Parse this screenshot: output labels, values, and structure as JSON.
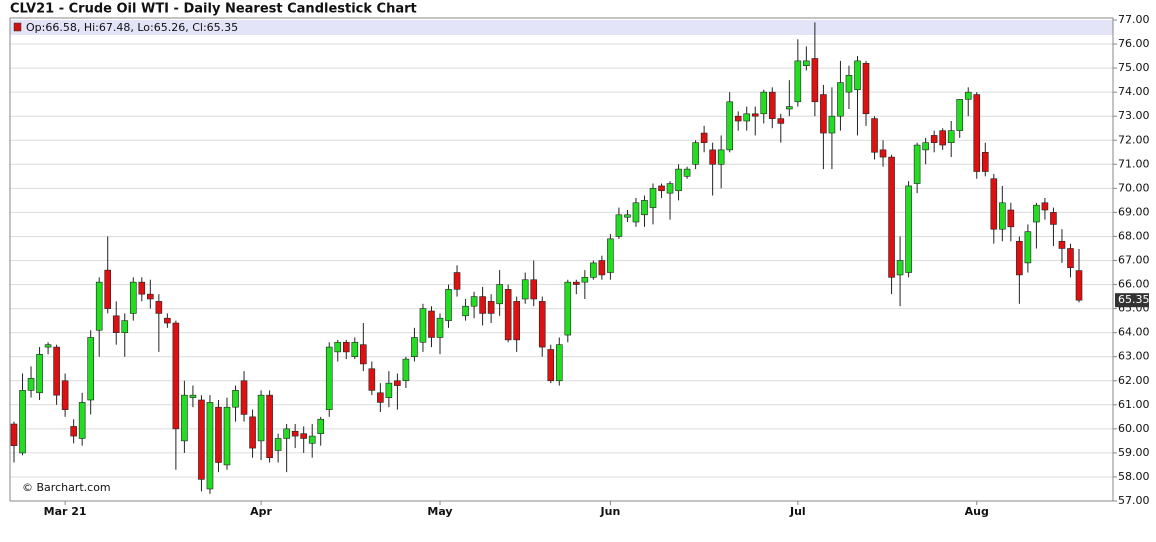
{
  "chart_data": {
    "type": "candlestick",
    "title": "CLV21 - Crude Oil WTI - Daily Nearest Candlestick Chart",
    "legend_text": "Op:66.58, Hi:67.48, Lo:65.26, Cl:65.35",
    "copyright": "© Barchart.com",
    "categories": [
      null,
      null,
      null,
      null,
      null,
      null,
      "Mar 21",
      null,
      null,
      null,
      null,
      null,
      null,
      null,
      null,
      null,
      null,
      null,
      null,
      null,
      null,
      null,
      null,
      null,
      null,
      null,
      null,
      null,
      null,
      "Apr",
      null,
      null,
      null,
      null,
      null,
      null,
      null,
      null,
      null,
      null,
      null,
      null,
      null,
      null,
      null,
      null,
      null,
      null,
      null,
      null,
      "May",
      null,
      null,
      null,
      null,
      null,
      null,
      null,
      null,
      null,
      null,
      null,
      null,
      null,
      null,
      null,
      null,
      null,
      null,
      null,
      "Jun",
      null,
      null,
      null,
      null,
      null,
      null,
      null,
      null,
      null,
      null,
      null,
      null,
      null,
      null,
      null,
      null,
      null,
      null,
      null,
      null,
      null,
      "Jul",
      null,
      null,
      null,
      null,
      null,
      null,
      null,
      null,
      null,
      null,
      null,
      null,
      null,
      null,
      null,
      null,
      null,
      null,
      null,
      null,
      "Aug",
      null,
      null,
      null,
      null,
      null,
      null,
      null,
      null,
      null,
      null,
      null,
      null
    ],
    "open": [
      60.2,
      59.0,
      61.6,
      61.5,
      63.4,
      63.4,
      62.0,
      60.1,
      59.6,
      61.2,
      64.1,
      66.6,
      64.7,
      64.0,
      64.8,
      66.1,
      65.6,
      65.3,
      64.6,
      64.4,
      59.5,
      61.3,
      61.2,
      57.5,
      60.9,
      58.5,
      60.9,
      62.0,
      60.5,
      59.5,
      61.4,
      59.1,
      59.6,
      59.9,
      59.8,
      59.4,
      59.8,
      60.8,
      63.2,
      63.6,
      63.0,
      63.5,
      62.5,
      61.5,
      61.3,
      62.0,
      62.0,
      63.0,
      63.6,
      64.9,
      63.8,
      64.5,
      66.5,
      64.7,
      65.1,
      65.5,
      65.3,
      65.2,
      65.8,
      65.3,
      65.4,
      66.2,
      65.3,
      63.3,
      62.0,
      63.9,
      66.1,
      66.1,
      66.3,
      67.0,
      66.5,
      68.0,
      68.8,
      68.6,
      68.9,
      69.2,
      70.1,
      69.8,
      69.9,
      70.5,
      71.0,
      72.3,
      71.6,
      71.0,
      71.6,
      73.0,
      72.8,
      73.1,
      73.1,
      74.0,
      72.9,
      73.3,
      73.6,
      75.1,
      75.4,
      73.9,
      72.3,
      73.0,
      74.0,
      74.1,
      75.2,
      72.9,
      71.6,
      71.3,
      66.4,
      66.5,
      70.2,
      71.6,
      72.2,
      72.4,
      71.9,
      72.4,
      73.7,
      73.9,
      71.5,
      70.4,
      68.3,
      69.1,
      67.8,
      66.9,
      68.6,
      69.4,
      69.0,
      67.8,
      67.5,
      66.58
    ],
    "high": [
      60.3,
      62.3,
      62.6,
      63.4,
      63.6,
      63.5,
      62.3,
      60.4,
      61.5,
      64.1,
      66.3,
      68.0,
      65.3,
      64.8,
      66.3,
      66.3,
      66.2,
      65.6,
      64.8,
      64.5,
      62.0,
      61.8,
      61.4,
      61.4,
      61.2,
      61.3,
      61.8,
      62.4,
      60.8,
      61.6,
      61.6,
      59.8,
      60.2,
      60.2,
      60.1,
      60.2,
      60.5,
      63.6,
      63.7,
      63.7,
      63.8,
      64.4,
      62.8,
      61.9,
      62.4,
      62.3,
      63.0,
      64.2,
      65.2,
      65.1,
      64.8,
      66.0,
      66.8,
      65.4,
      65.7,
      65.9,
      65.6,
      66.6,
      66.0,
      65.5,
      66.5,
      67.0,
      65.5,
      63.5,
      63.8,
      66.2,
      66.2,
      66.6,
      67.0,
      67.2,
      68.1,
      69.2,
      69.1,
      69.6,
      69.7,
      70.2,
      70.2,
      70.3,
      71.0,
      70.9,
      72.0,
      72.6,
      71.9,
      72.2,
      74.0,
      73.2,
      73.4,
      73.4,
      74.1,
      74.2,
      73.1,
      74.5,
      76.2,
      75.9,
      76.9,
      74.3,
      74.2,
      75.3,
      75.1,
      75.5,
      75.3,
      73.0,
      72.0,
      71.4,
      68.0,
      70.3,
      71.9,
      72.1,
      72.4,
      72.5,
      72.8,
      73.7,
      74.2,
      74.0,
      71.9,
      70.6,
      70.1,
      69.4,
      68.0,
      68.5,
      69.4,
      69.6,
      69.2,
      68.3,
      67.7,
      67.48
    ],
    "low": [
      58.6,
      58.9,
      61.3,
      61.2,
      63.1,
      61.0,
      60.5,
      59.4,
      59.3,
      60.6,
      63.0,
      64.8,
      63.5,
      63.0,
      64.5,
      65.3,
      65.0,
      63.2,
      64.2,
      58.3,
      59.0,
      60.9,
      57.4,
      57.3,
      58.2,
      58.3,
      60.3,
      60.3,
      58.8,
      58.7,
      58.6,
      58.6,
      58.2,
      59.2,
      59.0,
      58.8,
      59.3,
      60.5,
      62.8,
      62.9,
      62.9,
      62.4,
      61.4,
      60.7,
      60.9,
      60.8,
      61.7,
      62.8,
      63.2,
      63.4,
      63.1,
      64.2,
      65.5,
      64.5,
      64.6,
      64.3,
      64.4,
      64.7,
      63.6,
      63.2,
      65.2,
      65.1,
      63.0,
      61.9,
      61.8,
      63.6,
      65.6,
      65.4,
      66.2,
      66.2,
      66.2,
      67.9,
      68.6,
      68.4,
      68.4,
      68.5,
      69.6,
      68.7,
      69.5,
      70.4,
      70.8,
      71.5,
      69.7,
      70.0,
      71.5,
      72.4,
      72.4,
      72.2,
      72.7,
      72.5,
      71.9,
      73.0,
      73.4,
      74.9,
      73.0,
      70.8,
      70.8,
      72.4,
      73.3,
      72.2,
      72.6,
      71.2,
      70.9,
      65.6,
      65.1,
      66.3,
      69.8,
      71.0,
      71.5,
      71.6,
      71.3,
      72.1,
      73.0,
      70.4,
      70.5,
      67.7,
      67.8,
      67.8,
      65.2,
      66.5,
      67.5,
      68.7,
      67.6,
      66.9,
      66.3,
      65.26
    ],
    "close": [
      59.3,
      61.6,
      62.1,
      63.1,
      63.5,
      61.4,
      60.8,
      59.7,
      61.1,
      63.8,
      66.1,
      65.0,
      64.0,
      64.5,
      66.1,
      65.6,
      65.4,
      64.8,
      64.4,
      60.0,
      61.4,
      61.4,
      57.9,
      61.1,
      58.6,
      60.9,
      61.6,
      60.6,
      59.2,
      61.4,
      58.8,
      59.6,
      60.0,
      59.7,
      59.6,
      59.7,
      60.4,
      63.4,
      63.6,
      63.2,
      63.6,
      62.7,
      61.6,
      61.1,
      61.9,
      61.8,
      62.9,
      63.8,
      65.0,
      63.8,
      64.6,
      65.8,
      65.8,
      65.1,
      65.5,
      64.8,
      64.8,
      66.0,
      63.7,
      63.7,
      66.2,
      65.4,
      63.4,
      62.0,
      63.5,
      66.1,
      66.0,
      66.3,
      66.9,
      66.4,
      67.9,
      68.9,
      68.9,
      69.4,
      69.5,
      70.0,
      69.9,
      70.2,
      70.8,
      70.8,
      71.9,
      71.9,
      71.0,
      71.6,
      73.6,
      72.8,
      73.1,
      73.0,
      74.0,
      72.9,
      72.7,
      73.4,
      75.3,
      75.3,
      73.6,
      72.3,
      73.0,
      74.4,
      74.7,
      75.3,
      73.1,
      71.5,
      71.3,
      66.3,
      67.0,
      70.1,
      71.8,
      71.9,
      71.9,
      71.8,
      72.4,
      73.7,
      74.0,
      70.7,
      70.7,
      68.3,
      69.4,
      68.4,
      66.4,
      68.2,
      69.3,
      69.1,
      68.5,
      67.5,
      66.7,
      65.35
    ],
    "up_color": "#22dd22",
    "down_color": "#dd1111",
    "last_price": 65.35,
    "y_axis_side": "right",
    "grid": true,
    "ylim": [
      57,
      77
    ],
    "yticks": [
      {
        "value": 57,
        "label": "57.00"
      },
      {
        "value": 58,
        "label": "58.00"
      },
      {
        "value": 59,
        "label": "59.00"
      },
      {
        "value": 60,
        "label": "60.00"
      },
      {
        "value": 61,
        "label": "61.00"
      },
      {
        "value": 62,
        "label": "62.00"
      },
      {
        "value": 63,
        "label": "63.00"
      },
      {
        "value": 64,
        "label": "64.00"
      },
      {
        "value": 65,
        "label": "65.00"
      },
      {
        "value": 66,
        "label": "66.00"
      },
      {
        "value": 67,
        "label": "67.00"
      },
      {
        "value": 68,
        "label": "68.00"
      },
      {
        "value": 69,
        "label": "69.00"
      },
      {
        "value": 70,
        "label": "70.00"
      },
      {
        "value": 71,
        "label": "71.00"
      },
      {
        "value": 72,
        "label": "72.00"
      },
      {
        "value": 73,
        "label": "73.00"
      },
      {
        "value": 74,
        "label": "74.00"
      },
      {
        "value": 75,
        "label": "75.00"
      },
      {
        "value": 76,
        "label": "76.00"
      },
      {
        "value": 77,
        "label": "77.00"
      }
    ]
  }
}
